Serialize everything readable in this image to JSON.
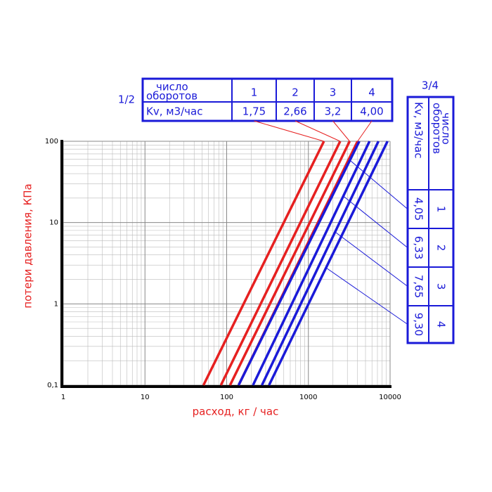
{
  "chart_data": {
    "type": "line",
    "xlabel": "расход, кг / час",
    "ylabel": "потери давления, КПа",
    "xscale": "log",
    "yscale": "log",
    "xlim": [
      1,
      10000
    ],
    "ylim": [
      0.1,
      100
    ],
    "xticks": [
      1,
      10,
      100,
      1000,
      10000
    ],
    "yticks": [
      {
        "value": 0.1,
        "label": "0,1"
      },
      1,
      10,
      100
    ],
    "grid": true,
    "series": [
      {
        "color": "#e62020",
        "x": [
          52,
          1550
        ],
        "values": [
          0.1,
          100
        ]
      },
      {
        "color": "#e62020",
        "x": [
          85,
          2450
        ],
        "values": [
          0.1,
          100
        ]
      },
      {
        "color": "#e62020",
        "x": [
          110,
          3200
        ],
        "values": [
          0.1,
          100
        ]
      },
      {
        "color": "#e62020",
        "x": [
          140,
          4000
        ],
        "values": [
          0.1,
          100
        ]
      },
      {
        "color": "#1a1ad8",
        "x": [
          140,
          4200
        ],
        "values": [
          0.1,
          100
        ]
      },
      {
        "color": "#1a1ad8",
        "x": [
          210,
          5600
        ],
        "values": [
          0.1,
          100
        ]
      },
      {
        "color": "#1a1ad8",
        "x": [
          270,
          7200
        ],
        "values": [
          0.1,
          100
        ]
      },
      {
        "color": "#1a1ad8",
        "x": [
          330,
          9300
        ],
        "values": [
          0.1,
          100
        ]
      }
    ],
    "tables": [
      {
        "title": "1/2",
        "turns_title": [
          "число",
          "оборотов"
        ],
        "kv_title": "Kv, м3/час",
        "turns": [
          1,
          2,
          3,
          4
        ],
        "values": [
          1.75,
          2.66,
          3.2,
          4.0
        ],
        "value_labels": [
          "1,75",
          "2,66",
          "3,2",
          "4,00"
        ],
        "series": [
          0,
          1,
          2,
          3
        ]
      },
      {
        "title": "3/4",
        "turns_title": [
          "число",
          "оборотов"
        ],
        "kv_title": "Kv, м3/час",
        "turns": [
          1,
          2,
          3,
          4
        ],
        "values": [
          4.05,
          6.33,
          7.65,
          9.3
        ],
        "value_labels": [
          "4,05",
          "6,33",
          "7,65",
          "9,30"
        ],
        "series": [
          4,
          5,
          6,
          7
        ]
      }
    ]
  }
}
